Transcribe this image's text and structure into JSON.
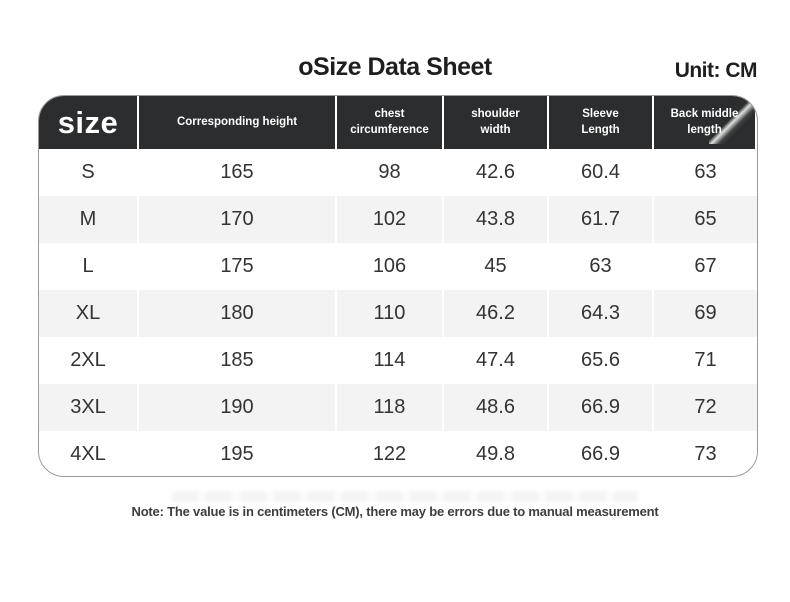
{
  "page": {
    "title": "oSize Data Sheet",
    "unit_label": "Unit: CM",
    "note": "Note: The value is in centimeters (CM), there may be errors due to manual measurement"
  },
  "colors": {
    "header_bg": "#2b2d2e",
    "header_text": "#ffffff",
    "row_stripe": "#f3f3f3",
    "table_border": "#9b9b9b",
    "cell_text": "#333333",
    "page_bg": "#ffffff",
    "title_text": "#1e1e1e",
    "note_text": "#3d3d3d"
  },
  "chart_data": {
    "type": "table",
    "title": "oSize Data Sheet",
    "unit": "CM",
    "columns": [
      "size",
      "Corresponding height",
      "chest\ncircumference",
      "shoulder\nwidth",
      "Sleeve\nLength",
      "Back middle length"
    ],
    "rows": [
      {
        "label": "S",
        "values": [
          165,
          98,
          42.6,
          60.4,
          63
        ]
      },
      {
        "label": "M",
        "values": [
          170,
          102,
          43.8,
          61.7,
          65
        ]
      },
      {
        "label": "L",
        "values": [
          175,
          106,
          45,
          63,
          67
        ]
      },
      {
        "label": "XL",
        "values": [
          180,
          110,
          46.2,
          64.3,
          69
        ]
      },
      {
        "label": "2XL",
        "values": [
          185,
          114,
          47.4,
          65.6,
          71
        ]
      },
      {
        "label": "3XL",
        "values": [
          190,
          118,
          48.6,
          66.9,
          72
        ]
      },
      {
        "label": "4XL",
        "values": [
          195,
          122,
          49.8,
          66.9,
          73
        ]
      }
    ],
    "layout": {
      "stripe_rows": [
        "M",
        "XL",
        "3XL"
      ],
      "header_style": "dark",
      "grid": "vertical-separators-only"
    }
  }
}
